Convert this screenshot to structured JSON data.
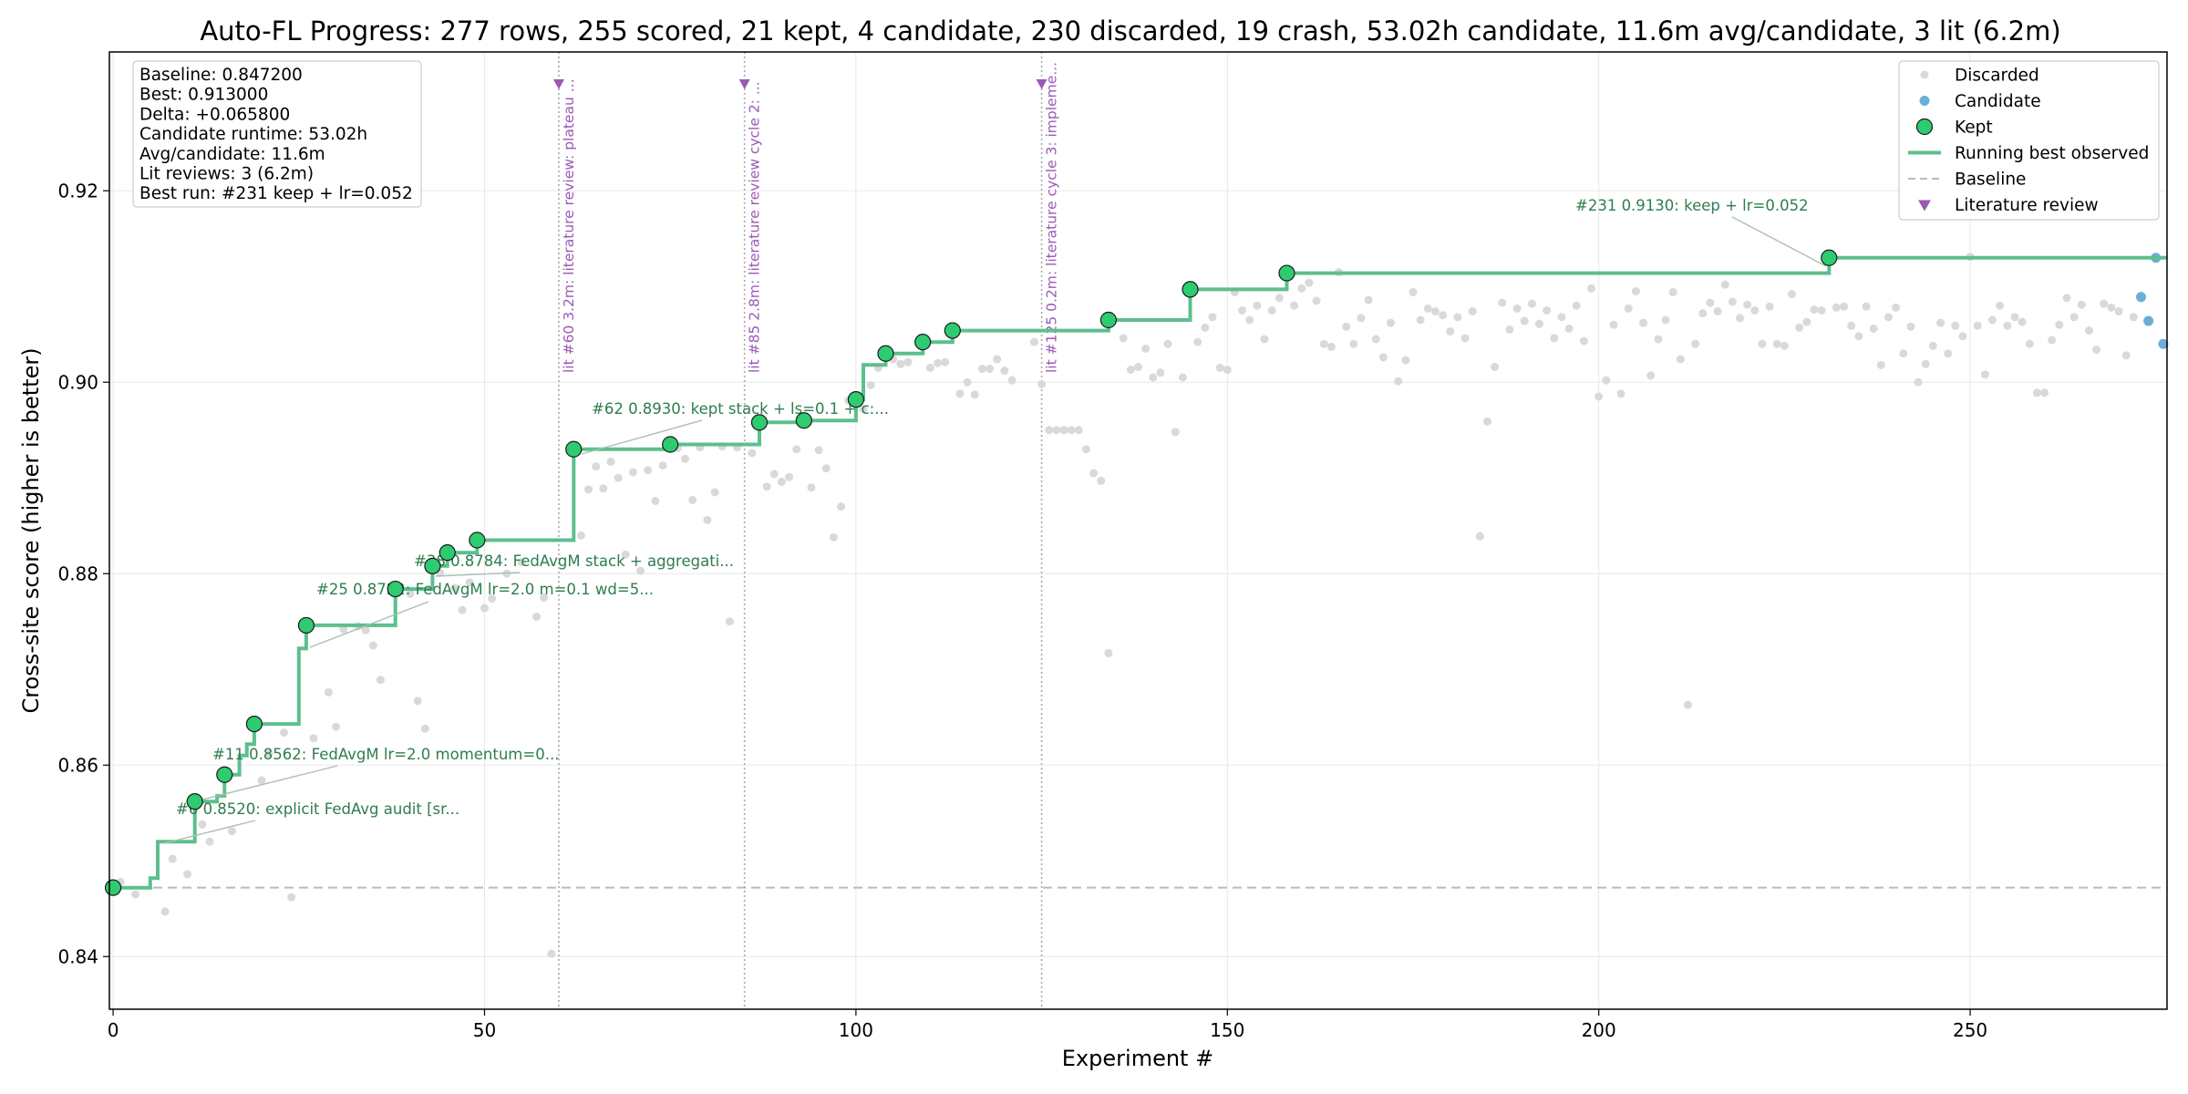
{
  "chart_data": {
    "type": "scatter",
    "title": "Auto-FL Progress: 277 rows, 255 scored, 21 kept, 4 candidate, 230 discarded, 19 crash, 53.02h candidate, 11.6m avg/candidate, 3 lit (6.2m)",
    "xlabel": "Experiment #",
    "ylabel": "Cross-site score (higher is better)",
    "xlim": [
      -0.5,
      276.5
    ],
    "ylim": [
      0.8345,
      0.9345
    ],
    "x_ticks": [
      0,
      50,
      100,
      150,
      200,
      250
    ],
    "y_ticks": [
      0.84,
      0.86,
      0.88,
      0.9,
      0.92
    ],
    "y_tick_labels": [
      "0.84",
      "0.86",
      "0.88",
      "0.90",
      "0.92"
    ],
    "grid": true,
    "legend_position": "top-right",
    "baseline": 0.8472,
    "colors": {
      "discarded": "#d9d9d9",
      "candidate": "#6baed6",
      "kept": "#2ecc71",
      "running_best": "#5dbf8e",
      "baseline": "#bbbbbb",
      "literature": "#9b59b6",
      "annotation": "#2e7d4f"
    },
    "legend": [
      {
        "key": "discarded",
        "label": "Discarded"
      },
      {
        "key": "candidate",
        "label": "Candidate"
      },
      {
        "key": "kept",
        "label": "Kept"
      },
      {
        "key": "running_best",
        "label": "Running best observed"
      },
      {
        "key": "baseline",
        "label": "Baseline"
      },
      {
        "key": "literature",
        "label": "Literature review"
      }
    ],
    "stats_box": [
      "Baseline: 0.847200",
      "Best: 0.913000",
      "Delta: +0.065800",
      "Candidate runtime: 53.02h",
      "Avg/candidate: 11.6m",
      "Lit reviews: 3 (6.2m)",
      "Best run: #231 keep + lr=0.052"
    ],
    "kept": [
      {
        "x": 0,
        "y": 0.8472
      },
      {
        "x": 11,
        "y": 0.8562
      },
      {
        "x": 15,
        "y": 0.859
      },
      {
        "x": 19,
        "y": 0.8643
      },
      {
        "x": 26,
        "y": 0.8746
      },
      {
        "x": 38,
        "y": 0.8784
      },
      {
        "x": 43,
        "y": 0.8808
      },
      {
        "x": 45,
        "y": 0.8822
      },
      {
        "x": 49,
        "y": 0.8835
      },
      {
        "x": 62,
        "y": 0.893
      },
      {
        "x": 75,
        "y": 0.8935
      },
      {
        "x": 87,
        "y": 0.8958
      },
      {
        "x": 93,
        "y": 0.896
      },
      {
        "x": 100,
        "y": 0.8982
      },
      {
        "x": 104,
        "y": 0.903
      },
      {
        "x": 109,
        "y": 0.9042
      },
      {
        "x": 113,
        "y": 0.9054
      },
      {
        "x": 134,
        "y": 0.9065
      },
      {
        "x": 145,
        "y": 0.9097
      },
      {
        "x": 158,
        "y": 0.9114
      },
      {
        "x": 231,
        "y": 0.913
      }
    ],
    "running_best": [
      {
        "x": 0,
        "y": 0.8472
      },
      {
        "x": 5,
        "y": 0.8472
      },
      {
        "x": 5,
        "y": 0.8482
      },
      {
        "x": 6,
        "y": 0.8482
      },
      {
        "x": 6,
        "y": 0.852
      },
      {
        "x": 11,
        "y": 0.852
      },
      {
        "x": 11,
        "y": 0.8562
      },
      {
        "x": 14,
        "y": 0.8562
      },
      {
        "x": 14,
        "y": 0.8568
      },
      {
        "x": 15,
        "y": 0.8568
      },
      {
        "x": 15,
        "y": 0.859
      },
      {
        "x": 17,
        "y": 0.859
      },
      {
        "x": 17,
        "y": 0.861
      },
      {
        "x": 18,
        "y": 0.861
      },
      {
        "x": 18,
        "y": 0.8622
      },
      {
        "x": 19,
        "y": 0.8622
      },
      {
        "x": 19,
        "y": 0.8643
      },
      {
        "x": 25,
        "y": 0.8643
      },
      {
        "x": 25,
        "y": 0.8722
      },
      {
        "x": 26,
        "y": 0.8722
      },
      {
        "x": 26,
        "y": 0.8746
      },
      {
        "x": 38,
        "y": 0.8746
      },
      {
        "x": 38,
        "y": 0.8784
      },
      {
        "x": 43,
        "y": 0.8784
      },
      {
        "x": 43,
        "y": 0.8808
      },
      {
        "x": 45,
        "y": 0.8808
      },
      {
        "x": 45,
        "y": 0.8822
      },
      {
        "x": 49,
        "y": 0.8822
      },
      {
        "x": 49,
        "y": 0.8835
      },
      {
        "x": 62,
        "y": 0.8835
      },
      {
        "x": 62,
        "y": 0.893
      },
      {
        "x": 75,
        "y": 0.893
      },
      {
        "x": 75,
        "y": 0.8935
      },
      {
        "x": 87,
        "y": 0.8935
      },
      {
        "x": 87,
        "y": 0.8958
      },
      {
        "x": 93,
        "y": 0.8958
      },
      {
        "x": 93,
        "y": 0.896
      },
      {
        "x": 100,
        "y": 0.896
      },
      {
        "x": 100,
        "y": 0.8982
      },
      {
        "x": 101,
        "y": 0.8982
      },
      {
        "x": 101,
        "y": 0.9018
      },
      {
        "x": 104,
        "y": 0.9018
      },
      {
        "x": 104,
        "y": 0.903
      },
      {
        "x": 109,
        "y": 0.903
      },
      {
        "x": 109,
        "y": 0.9042
      },
      {
        "x": 113,
        "y": 0.9042
      },
      {
        "x": 113,
        "y": 0.9054
      },
      {
        "x": 134,
        "y": 0.9054
      },
      {
        "x": 134,
        "y": 0.9065
      },
      {
        "x": 145,
        "y": 0.9065
      },
      {
        "x": 145,
        "y": 0.9097
      },
      {
        "x": 158,
        "y": 0.9097
      },
      {
        "x": 158,
        "y": 0.9114
      },
      {
        "x": 231,
        "y": 0.9114
      },
      {
        "x": 231,
        "y": 0.913
      },
      {
        "x": 276.5,
        "y": 0.913
      }
    ],
    "candidate": [
      {
        "x": 273,
        "y": 0.9089
      },
      {
        "x": 274,
        "y": 0.9064
      },
      {
        "x": 275,
        "y": 0.913
      },
      {
        "x": 276,
        "y": 0.904
      }
    ],
    "discarded": [
      {
        "x": 1,
        "y": 0.8478
      },
      {
        "x": 3,
        "y": 0.8465
      },
      {
        "x": 7,
        "y": 0.8447
      },
      {
        "x": 8,
        "y": 0.8502
      },
      {
        "x": 10,
        "y": 0.8486
      },
      {
        "x": 12,
        "y": 0.8538
      },
      {
        "x": 13,
        "y": 0.852
      },
      {
        "x": 16,
        "y": 0.8531
      },
      {
        "x": 20,
        "y": 0.8584
      },
      {
        "x": 21,
        "y": 0.8612
      },
      {
        "x": 23,
        "y": 0.8634
      },
      {
        "x": 24,
        "y": 0.8462
      },
      {
        "x": 27,
        "y": 0.8628
      },
      {
        "x": 29,
        "y": 0.8676
      },
      {
        "x": 30,
        "y": 0.864
      },
      {
        "x": 31,
        "y": 0.8742
      },
      {
        "x": 33,
        "y": 0.8745
      },
      {
        "x": 34,
        "y": 0.8741
      },
      {
        "x": 35,
        "y": 0.8725
      },
      {
        "x": 36,
        "y": 0.8689
      },
      {
        "x": 40,
        "y": 0.8779
      },
      {
        "x": 41,
        "y": 0.8667
      },
      {
        "x": 42,
        "y": 0.8638
      },
      {
        "x": 44,
        "y": 0.8801
      },
      {
        "x": 46,
        "y": 0.8785
      },
      {
        "x": 47,
        "y": 0.8762
      },
      {
        "x": 48,
        "y": 0.8791
      },
      {
        "x": 50,
        "y": 0.8764
      },
      {
        "x": 51,
        "y": 0.8774
      },
      {
        "x": 53,
        "y": 0.88
      },
      {
        "x": 55,
        "y": 0.8812
      },
      {
        "x": 57,
        "y": 0.8755
      },
      {
        "x": 58,
        "y": 0.8775
      },
      {
        "x": 59,
        "y": 0.8403
      },
      {
        "x": 63,
        "y": 0.884
      },
      {
        "x": 64,
        "y": 0.8888
      },
      {
        "x": 65,
        "y": 0.8912
      },
      {
        "x": 66,
        "y": 0.8889
      },
      {
        "x": 67,
        "y": 0.8917
      },
      {
        "x": 68,
        "y": 0.89
      },
      {
        "x": 69,
        "y": 0.882
      },
      {
        "x": 70,
        "y": 0.8906
      },
      {
        "x": 71,
        "y": 0.8803
      },
      {
        "x": 72,
        "y": 0.8908
      },
      {
        "x": 73,
        "y": 0.8876
      },
      {
        "x": 74,
        "y": 0.8913
      },
      {
        "x": 76,
        "y": 0.8931
      },
      {
        "x": 77,
        "y": 0.892
      },
      {
        "x": 78,
        "y": 0.8877
      },
      {
        "x": 79,
        "y": 0.8932
      },
      {
        "x": 80,
        "y": 0.8856
      },
      {
        "x": 81,
        "y": 0.8885
      },
      {
        "x": 82,
        "y": 0.8933
      },
      {
        "x": 83,
        "y": 0.875
      },
      {
        "x": 84,
        "y": 0.8932
      },
      {
        "x": 86,
        "y": 0.8926
      },
      {
        "x": 88,
        "y": 0.8891
      },
      {
        "x": 89,
        "y": 0.8904
      },
      {
        "x": 90,
        "y": 0.8896
      },
      {
        "x": 91,
        "y": 0.8901
      },
      {
        "x": 92,
        "y": 0.893
      },
      {
        "x": 94,
        "y": 0.889
      },
      {
        "x": 95,
        "y": 0.8929
      },
      {
        "x": 96,
        "y": 0.891
      },
      {
        "x": 97,
        "y": 0.8838
      },
      {
        "x": 98,
        "y": 0.887
      },
      {
        "x": 99,
        "y": 0.8981
      },
      {
        "x": 101,
        "y": 0.8972
      },
      {
        "x": 102,
        "y": 0.8997
      },
      {
        "x": 103,
        "y": 0.9015
      },
      {
        "x": 105,
        "y": 0.9024
      },
      {
        "x": 106,
        "y": 0.9019
      },
      {
        "x": 107,
        "y": 0.9021
      },
      {
        "x": 110,
        "y": 0.9015
      },
      {
        "x": 111,
        "y": 0.902
      },
      {
        "x": 112,
        "y": 0.9021
      },
      {
        "x": 114,
        "y": 0.8988
      },
      {
        "x": 115,
        "y": 0.9
      },
      {
        "x": 116,
        "y": 0.8987
      },
      {
        "x": 117,
        "y": 0.9014
      },
      {
        "x": 118,
        "y": 0.9014
      },
      {
        "x": 119,
        "y": 0.9024
      },
      {
        "x": 120,
        "y": 0.9012
      },
      {
        "x": 121,
        "y": 0.9002
      },
      {
        "x": 124,
        "y": 0.9042
      },
      {
        "x": 125,
        "y": 0.8998
      },
      {
        "x": 126,
        "y": 0.895
      },
      {
        "x": 127,
        "y": 0.895
      },
      {
        "x": 128,
        "y": 0.895
      },
      {
        "x": 129,
        "y": 0.895
      },
      {
        "x": 130,
        "y": 0.895
      },
      {
        "x": 131,
        "y": 0.893
      },
      {
        "x": 132,
        "y": 0.8905
      },
      {
        "x": 133,
        "y": 0.8897
      },
      {
        "x": 134,
        "y": 0.8717
      },
      {
        "x": 136,
        "y": 0.9046
      },
      {
        "x": 137,
        "y": 0.9013
      },
      {
        "x": 138,
        "y": 0.9016
      },
      {
        "x": 139,
        "y": 0.9035
      },
      {
        "x": 140,
        "y": 0.9005
      },
      {
        "x": 141,
        "y": 0.901
      },
      {
        "x": 142,
        "y": 0.904
      },
      {
        "x": 143,
        "y": 0.8948
      },
      {
        "x": 144,
        "y": 0.9005
      },
      {
        "x": 146,
        "y": 0.9042
      },
      {
        "x": 147,
        "y": 0.9057
      },
      {
        "x": 148,
        "y": 0.9068
      },
      {
        "x": 149,
        "y": 0.9015
      },
      {
        "x": 150,
        "y": 0.9013
      },
      {
        "x": 151,
        "y": 0.9094
      },
      {
        "x": 152,
        "y": 0.9075
      },
      {
        "x": 153,
        "y": 0.9065
      },
      {
        "x": 154,
        "y": 0.908
      },
      {
        "x": 155,
        "y": 0.9045
      },
      {
        "x": 156,
        "y": 0.9075
      },
      {
        "x": 157,
        "y": 0.9088
      },
      {
        "x": 159,
        "y": 0.908
      },
      {
        "x": 160,
        "y": 0.9098
      },
      {
        "x": 161,
        "y": 0.9104
      },
      {
        "x": 162,
        "y": 0.9085
      },
      {
        "x": 163,
        "y": 0.904
      },
      {
        "x": 164,
        "y": 0.9037
      },
      {
        "x": 165,
        "y": 0.9115
      },
      {
        "x": 166,
        "y": 0.9058
      },
      {
        "x": 167,
        "y": 0.904
      },
      {
        "x": 168,
        "y": 0.9067
      },
      {
        "x": 169,
        "y": 0.9086
      },
      {
        "x": 170,
        "y": 0.9045
      },
      {
        "x": 171,
        "y": 0.9026
      },
      {
        "x": 172,
        "y": 0.9062
      },
      {
        "x": 173,
        "y": 0.9001
      },
      {
        "x": 174,
        "y": 0.9023
      },
      {
        "x": 175,
        "y": 0.9094
      },
      {
        "x": 176,
        "y": 0.9065
      },
      {
        "x": 177,
        "y": 0.9077
      },
      {
        "x": 178,
        "y": 0.9074
      },
      {
        "x": 179,
        "y": 0.907
      },
      {
        "x": 180,
        "y": 0.9053
      },
      {
        "x": 181,
        "y": 0.9068
      },
      {
        "x": 182,
        "y": 0.9046
      },
      {
        "x": 183,
        "y": 0.9074
      },
      {
        "x": 184,
        "y": 0.8839
      },
      {
        "x": 185,
        "y": 0.8959
      },
      {
        "x": 186,
        "y": 0.9016
      },
      {
        "x": 187,
        "y": 0.9083
      },
      {
        "x": 188,
        "y": 0.9055
      },
      {
        "x": 189,
        "y": 0.9077
      },
      {
        "x": 190,
        "y": 0.9064
      },
      {
        "x": 191,
        "y": 0.9082
      },
      {
        "x": 192,
        "y": 0.9061
      },
      {
        "x": 193,
        "y": 0.9075
      },
      {
        "x": 194,
        "y": 0.9046
      },
      {
        "x": 195,
        "y": 0.9068
      },
      {
        "x": 196,
        "y": 0.9056
      },
      {
        "x": 197,
        "y": 0.908
      },
      {
        "x": 198,
        "y": 0.9043
      },
      {
        "x": 199,
        "y": 0.9098
      },
      {
        "x": 200,
        "y": 0.8985
      },
      {
        "x": 201,
        "y": 0.9002
      },
      {
        "x": 202,
        "y": 0.906
      },
      {
        "x": 203,
        "y": 0.8988
      },
      {
        "x": 204,
        "y": 0.9077
      },
      {
        "x": 205,
        "y": 0.9095
      },
      {
        "x": 206,
        "y": 0.9062
      },
      {
        "x": 207,
        "y": 0.9007
      },
      {
        "x": 208,
        "y": 0.9045
      },
      {
        "x": 209,
        "y": 0.9065
      },
      {
        "x": 210,
        "y": 0.9094
      },
      {
        "x": 211,
        "y": 0.9024
      },
      {
        "x": 212,
        "y": 0.8663
      },
      {
        "x": 213,
        "y": 0.904
      },
      {
        "x": 214,
        "y": 0.9072
      },
      {
        "x": 215,
        "y": 0.9083
      },
      {
        "x": 216,
        "y": 0.9074
      },
      {
        "x": 217,
        "y": 0.9102
      },
      {
        "x": 218,
        "y": 0.9084
      },
      {
        "x": 219,
        "y": 0.9067
      },
      {
        "x": 220,
        "y": 0.9081
      },
      {
        "x": 221,
        "y": 0.9075
      },
      {
        "x": 222,
        "y": 0.904
      },
      {
        "x": 223,
        "y": 0.9079
      },
      {
        "x": 224,
        "y": 0.904
      },
      {
        "x": 225,
        "y": 0.9038
      },
      {
        "x": 226,
        "y": 0.9092
      },
      {
        "x": 227,
        "y": 0.9057
      },
      {
        "x": 228,
        "y": 0.9063
      },
      {
        "x": 229,
        "y": 0.9076
      },
      {
        "x": 230,
        "y": 0.9075
      },
      {
        "x": 232,
        "y": 0.9078
      },
      {
        "x": 233,
        "y": 0.9079
      },
      {
        "x": 234,
        "y": 0.9059
      },
      {
        "x": 235,
        "y": 0.9048
      },
      {
        "x": 236,
        "y": 0.9079
      },
      {
        "x": 237,
        "y": 0.9056
      },
      {
        "x": 238,
        "y": 0.9018
      },
      {
        "x": 239,
        "y": 0.9068
      },
      {
        "x": 240,
        "y": 0.9078
      },
      {
        "x": 241,
        "y": 0.903
      },
      {
        "x": 242,
        "y": 0.9058
      },
      {
        "x": 243,
        "y": 0.9
      },
      {
        "x": 244,
        "y": 0.9019
      },
      {
        "x": 245,
        "y": 0.9038
      },
      {
        "x": 246,
        "y": 0.9062
      },
      {
        "x": 247,
        "y": 0.903
      },
      {
        "x": 248,
        "y": 0.9059
      },
      {
        "x": 249,
        "y": 0.9048
      },
      {
        "x": 250,
        "y": 0.9131
      },
      {
        "x": 251,
        "y": 0.9059
      },
      {
        "x": 252,
        "y": 0.9008
      },
      {
        "x": 253,
        "y": 0.9065
      },
      {
        "x": 254,
        "y": 0.908
      },
      {
        "x": 255,
        "y": 0.9059
      },
      {
        "x": 256,
        "y": 0.9068
      },
      {
        "x": 257,
        "y": 0.9063
      },
      {
        "x": 258,
        "y": 0.904
      },
      {
        "x": 259,
        "y": 0.8989
      },
      {
        "x": 260,
        "y": 0.8989
      },
      {
        "x": 261,
        "y": 0.9044
      },
      {
        "x": 262,
        "y": 0.906
      },
      {
        "x": 263,
        "y": 0.9088
      },
      {
        "x": 264,
        "y": 0.9068
      },
      {
        "x": 265,
        "y": 0.9081
      },
      {
        "x": 266,
        "y": 0.9054
      },
      {
        "x": 267,
        "y": 0.9034
      },
      {
        "x": 268,
        "y": 0.9082
      },
      {
        "x": 269,
        "y": 0.9078
      },
      {
        "x": 270,
        "y": 0.9074
      },
      {
        "x": 271,
        "y": 0.9028
      },
      {
        "x": 272,
        "y": 0.9068
      }
    ],
    "literature_reviews": [
      {
        "x": 60,
        "label": "lit #60 3.2m: literature review: plateau ..."
      },
      {
        "x": 85,
        "label": "lit #85 2.8m: literature review cycle 2: ..."
      },
      {
        "x": 125,
        "label": "lit #125 0.2m: literature cycle 3: impleme..."
      }
    ],
    "annotations": [
      {
        "target_x": 6,
        "target_y": 0.852,
        "label": "#6 0.8520: explicit FedAvg audit [sr..."
      },
      {
        "target_x": 11,
        "target_y": 0.8562,
        "label": "#11 0.8562: FedAvgM lr=2.0 momentum=0..."
      },
      {
        "target_x": 26,
        "target_y": 0.8722,
        "label": "#25 0.8722: FedAvgM lr=2.0 m=0.1 wd=5..."
      },
      {
        "target_x": 43,
        "target_y": 0.8784,
        "label": "#38 0.8784: FedAvgM stack + aggregati..."
      },
      {
        "target_x": 62,
        "target_y": 0.893,
        "label": "#62 0.8930: kept stack + ls=0.1 + c:..."
      },
      {
        "target_x": 231,
        "target_y": 0.913,
        "label": "#231 0.9130: keep + lr=0.052"
      }
    ]
  }
}
